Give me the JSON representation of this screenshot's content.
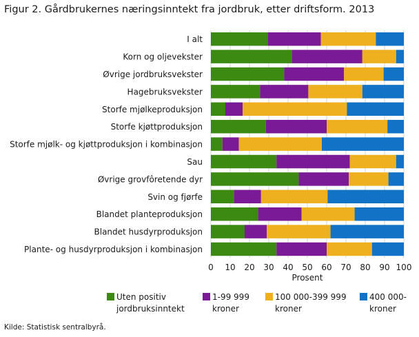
{
  "title": "Figur 2. Gårdbrukernes næringsinntekt fra jordbruk, etter driftsform. 2013",
  "source": "Kilde: Statistisk sentralbyrå.",
  "chart_data": {
    "type": "bar",
    "orientation": "horizontal",
    "stacked": true,
    "categories": [
      "I alt",
      "Korn og oljevekster",
      "Øvrige jordbruksvekster",
      "Hagebruksvekster",
      "Storfe mjølkeproduksjon",
      "Storfe kjøttproduksjon",
      "Storfe mjølk- og kjøttproduksjon i kombinasjon",
      "Sau",
      "Øvrige grovfôretende dyr",
      "Svin og fjørfe",
      "Blandet planteproduksjon",
      "Blandet husdyrproduksjon",
      "Plante- og husdyrproduksjon i kombinasjon"
    ],
    "series": [
      {
        "name": "Uten positiv jordbruksinntekt",
        "legend_lines": [
          "Uten positiv",
          "jordbruksinntekt"
        ],
        "color": "#3d8a12",
        "values": [
          29.5,
          42,
          38,
          25.5,
          7.5,
          28.5,
          6,
          34,
          45.5,
          12,
          24.5,
          17.5,
          34
        ]
      },
      {
        "name": "1-99 999 kroner",
        "legend_lines": [
          "1-99 999",
          "kroner"
        ],
        "color": "#7a1a96",
        "values": [
          27.5,
          36.5,
          31,
          25,
          9,
          31.5,
          8.5,
          38,
          26,
          14,
          22.5,
          11.5,
          26
        ]
      },
      {
        "name": "100 000-399 999 kroner",
        "legend_lines": [
          "100 000-399 999",
          "kroner"
        ],
        "color": "#efb020",
        "values": [
          28.5,
          17.5,
          20.5,
          28,
          54,
          31.5,
          43,
          24,
          20.5,
          34.5,
          27.5,
          33,
          23.5
        ]
      },
      {
        "name": "400 000- kroner",
        "legend_lines": [
          "400 000-",
          "kroner"
        ],
        "color": "#1172c6",
        "values": [
          14.5,
          4,
          10.5,
          21.5,
          29.5,
          8.5,
          42.5,
          4,
          8,
          39.5,
          25.5,
          38,
          16.5
        ]
      }
    ],
    "xlabel": "Prosent",
    "xlim": [
      0,
      100
    ],
    "xticks": [
      0,
      10,
      20,
      30,
      40,
      50,
      60,
      70,
      80,
      90,
      100
    ],
    "grid": true,
    "legend": "bottom"
  }
}
